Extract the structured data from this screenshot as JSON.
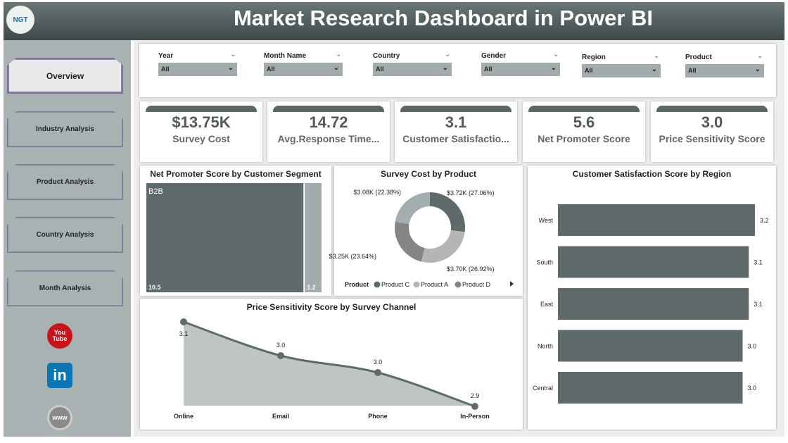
{
  "header": {
    "title": "Market Research Dashboard in Power BI",
    "logo_text": "NGT"
  },
  "sidebar": {
    "items": [
      {
        "label": "Overview",
        "active": true
      },
      {
        "label": "Industry Analysis"
      },
      {
        "label": "Product Analysis"
      },
      {
        "label": "Country Analysis"
      },
      {
        "label": "Month Analysis"
      }
    ],
    "social": [
      {
        "icon": "youtube-icon",
        "label": "You Tube"
      },
      {
        "icon": "linkedin-icon",
        "label": "in"
      },
      {
        "icon": "globe-icon",
        "label": "www"
      }
    ]
  },
  "filters": [
    {
      "label": "Year",
      "value": "All"
    },
    {
      "label": "Month Name",
      "value": "All"
    },
    {
      "label": "Country",
      "value": "All"
    },
    {
      "label": "Gender",
      "value": "All"
    },
    {
      "label": "Region",
      "value": "All"
    },
    {
      "label": "Product",
      "value": "All"
    }
  ],
  "kpis": [
    {
      "value": "$13.75K",
      "label": "Survey Cost"
    },
    {
      "value": "14.72",
      "label": "Avg.Response Time..."
    },
    {
      "value": "3.1",
      "label": "Customer Satisfactio..."
    },
    {
      "value": "5.6",
      "label": "Net Promoter Score"
    },
    {
      "value": "3.0",
      "label": "Price Sensitivity Score"
    }
  ],
  "colors": {
    "dark": "#5f6b6b",
    "sidebar": "#a9b2b2",
    "light": "#a3acac"
  },
  "chart_data": [
    {
      "type": "treemap",
      "title": "Net Promoter Score by Customer Segment",
      "categories": [
        "B2B",
        ""
      ],
      "values": [
        10.5,
        1.2
      ],
      "labels": [
        "10.5",
        "1.2"
      ]
    },
    {
      "type": "pie",
      "title": "Survey Cost by Product",
      "legend_title": "Product",
      "legend": [
        "Product C",
        "Product A",
        "Product D"
      ],
      "slices": [
        {
          "name": "Product C",
          "value": 3.72,
          "label": "$3.72K (27.06%)",
          "color": "#5f6b6b"
        },
        {
          "name": "Product A",
          "value": 3.7,
          "label": "$3.70K (26.92%)",
          "color": "#b5b5b5"
        },
        {
          "name": "Product D",
          "value": 3.25,
          "label": "$3.25K (23.64%)",
          "color": "#858585"
        },
        {
          "name": "",
          "value": 3.08,
          "label": "$3.08K (22.38%)",
          "color": "#a3aeb0"
        }
      ]
    },
    {
      "type": "bar",
      "orientation": "horizontal",
      "title": "Customer Satisfaction Score by Region",
      "categories": [
        "West",
        "South",
        "East",
        "North",
        "Central"
      ],
      "values": [
        3.2,
        3.1,
        3.1,
        3.0,
        3.0
      ],
      "labels": [
        "3.2",
        "3.1",
        "3.1",
        "3.0",
        "3.0"
      ]
    },
    {
      "type": "area",
      "title": "Price Sensitivity Score by Survey Channel",
      "categories": [
        "Online",
        "Email",
        "Phone",
        "In-Person"
      ],
      "values": [
        3.08,
        3.02,
        2.99,
        2.93
      ],
      "labels": [
        "3.1",
        "3.0",
        "3.0",
        "2.9"
      ]
    }
  ]
}
